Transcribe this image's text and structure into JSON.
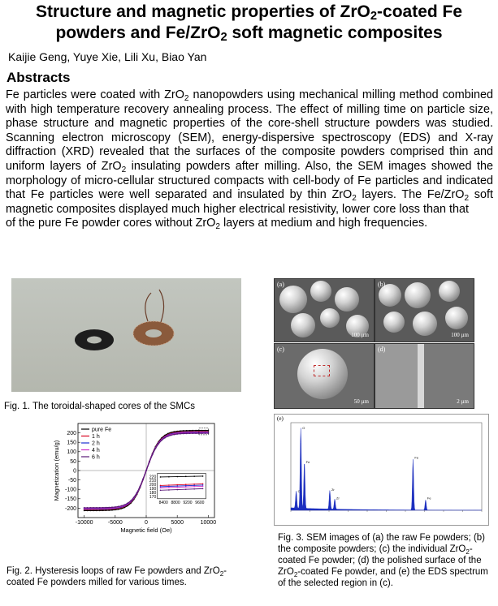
{
  "title": {
    "line1_a": "Structure and magnetic properties of ZrO",
    "line1_sub": "2",
    "line1_b": "-coated Fe",
    "line2_a": "powders and Fe/ZrO",
    "line2_sub": "2",
    "line2_b": " soft magnetic composites"
  },
  "authors": "Kaijie Geng, Yuye  Xie, Lili Xu, Biao Yan",
  "abstract_heading": "Abstracts",
  "abstract": {
    "p1": "Fe particles were coated with ZrO",
    "s1": "2",
    "p2": " nanopowders using mechanical milling method combined with high temperature recovery annealing process. The effect of milling time on particle size, phase structure and magnetic properties of the core-shell structure powders was studied. Scanning electron microscopy  (SEM), energy-dispersive spectroscopy (EDS) and X-ray diffraction (XRD) revealed that the surfaces of the composite powders comprised thin and uniform layers of ZrO",
    "s2": "2",
    "p3": " insulating powders after milling. Also, the SEM images showed the morphology of micro-cellular structured compacts with cell-body of Fe particles and indicated that Fe particles were well separated and insulated by thin ZrO",
    "s3": "2",
    "p4": " layers. The Fe/ZrO",
    "s4": "2",
    "p5": " soft magnetic composites displayed much higher electrical resistivity, lower core loss than that",
    "p6": "of the pure Fe powder cores without ZrO",
    "s6": "2",
    "p7": " layers at medium and high frequencies."
  },
  "fig1_caption": "Fig. 1. The toroidal-shaped   cores of the SMCs",
  "fig2_caption": {
    "a": "Fig. 2. Hysteresis loops of raw Fe powders and ZrO",
    "s": "2",
    "b": "-coated  Fe powders milled for various times."
  },
  "fig3_caption": {
    "a": "Fig. 3. SEM images of (a) the raw Fe powders; (b) the composite powders; (c) the individual ZrO",
    "s1": "2",
    "b": "-coated  Fe powder; (d) the polished surface of the ZrO",
    "s2": "2",
    "c": "-coated  Fe powder,  and (e) the EDS spectrum of the selected region in (c)."
  },
  "sem_panels": [
    {
      "label": "(a)",
      "scale": "100 µm"
    },
    {
      "label": "(b)",
      "scale": "100 µm"
    },
    {
      "label": "(c)",
      "scale": "50 µm"
    },
    {
      "label": "(d)",
      "scale": "2 µm"
    }
  ],
  "eds_label": "(e)",
  "chart_data": {
    "type": "line",
    "title": "",
    "xlabel": "Magnetic field (Oe)",
    "ylabel": "Magnetization (emu/g)",
    "xlim": [
      -11000,
      11000
    ],
    "ylim": [
      -250,
      250
    ],
    "xticks": [
      -10000,
      -5000,
      0,
      5000,
      10000
    ],
    "yticks": [
      -200,
      -150,
      -100,
      -50,
      0,
      50,
      100,
      150,
      200
    ],
    "legend_position": "top-left",
    "series": [
      {
        "name": "pure Fe",
        "color": "#000000",
        "marker": "square",
        "ms": 213
      },
      {
        "name": "1 h",
        "color": "#d8001f",
        "marker": "circle",
        "ms": 207
      },
      {
        "name": "2 h",
        "color": "#1a2fd0",
        "marker": "triangle",
        "ms": 204
      },
      {
        "name": "4 h",
        "color": "#d02ac8",
        "marker": "triangle-down",
        "ms": 201
      },
      {
        "name": "6 h",
        "color": "#5a1a78",
        "marker": "diamond",
        "ms": 198
      }
    ],
    "inset": {
      "xticks": [
        8400,
        8800,
        9200,
        9600
      ],
      "yticks": [
        170,
        180,
        190,
        200,
        210,
        220
      ],
      "xlim": [
        8200,
        9800
      ],
      "ylim": [
        165,
        228
      ],
      "series_values": [
        {
          "name": "pure Fe",
          "color": "#000000",
          "y0": 219,
          "y1": 221
        },
        {
          "name": "1 h",
          "color": "#d8001f",
          "y0": 198,
          "y1": 202
        },
        {
          "name": "2 h",
          "color": "#1a2fd0",
          "y0": 195,
          "y1": 199
        },
        {
          "name": "4 h",
          "color": "#d02ac8",
          "y0": 192,
          "y1": 196
        },
        {
          "name": "6 h",
          "color": "#5a1a78",
          "y0": 186,
          "y1": 190
        }
      ]
    }
  },
  "eds_peaks": [
    {
      "label": "O",
      "kev": 0.52,
      "h": 0.95
    },
    {
      "label": "Fe",
      "kev": 0.71,
      "h": 0.55
    },
    {
      "label": "C",
      "kev": 0.28,
      "h": 0.2
    },
    {
      "label": "Zr",
      "kev": 2.04,
      "h": 0.22
    },
    {
      "label": "Zr",
      "kev": 2.3,
      "h": 0.12
    },
    {
      "label": "Fe",
      "kev": 6.4,
      "h": 0.6
    },
    {
      "label": "Fe",
      "kev": 7.06,
      "h": 0.12
    }
  ]
}
